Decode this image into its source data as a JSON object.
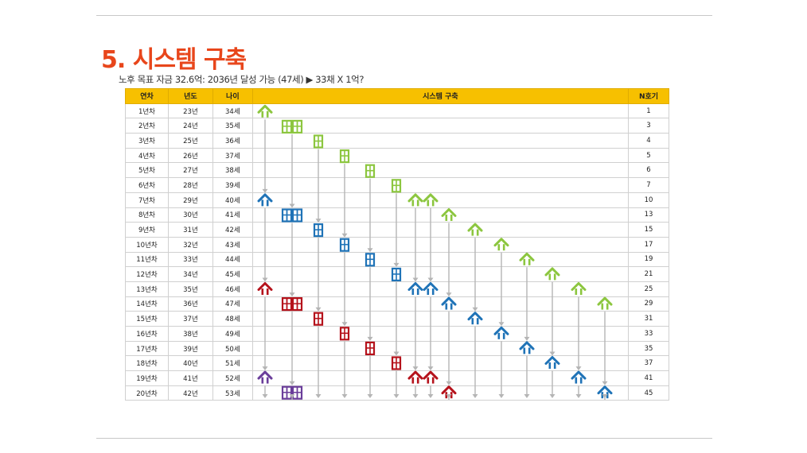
{
  "title": "5. 시스템 구축",
  "subtitle": "노후 목표 자금 32.6억: 2036년 달성 가능 (47세) ▶ 33채 X 1억?",
  "table": {
    "headers": [
      "연차",
      "년도",
      "나이",
      "시스템 구축",
      "N호기"
    ],
    "rows": [
      [
        "1년차",
        "23년",
        "34세",
        "1"
      ],
      [
        "2년차",
        "24년",
        "35세",
        "3"
      ],
      [
        "3년차",
        "25년",
        "36세",
        "4"
      ],
      [
        "4년차",
        "26년",
        "37세",
        "5"
      ],
      [
        "5년차",
        "27년",
        "38세",
        "6"
      ],
      [
        "6년차",
        "28년",
        "39세",
        "7"
      ],
      [
        "7년차",
        "29년",
        "40세",
        "10"
      ],
      [
        "8년차",
        "30년",
        "41세",
        "13"
      ],
      [
        "9년차",
        "31년",
        "42세",
        "15"
      ],
      [
        "10년차",
        "32년",
        "43세",
        "17"
      ],
      [
        "11년차",
        "33년",
        "44세",
        "19"
      ],
      [
        "12년차",
        "34년",
        "45세",
        "21"
      ],
      [
        "13년차",
        "35년",
        "46세",
        "25"
      ],
      [
        "14년차",
        "36년",
        "47세",
        "29"
      ],
      [
        "15년차",
        "37년",
        "48세",
        "31"
      ],
      [
        "16년차",
        "38년",
        "49세",
        "33"
      ],
      [
        "17년차",
        "39년",
        "50세",
        "35"
      ],
      [
        "18년차",
        "40년",
        "51세",
        "37"
      ],
      [
        "19년차",
        "41년",
        "52세",
        "41"
      ],
      [
        "20년차",
        "42년",
        "53세",
        "45"
      ]
    ]
  },
  "colors": {
    "header": "#f7c000",
    "title": "#e8461b",
    "arrow": "#b5b5b5",
    "stage": [
      "#8cc63f",
      "#1f73b7",
      "#b5121b",
      "#6a3d9a"
    ]
  },
  "timeline": [
    {
      "icon": "house",
      "start": 1
    },
    {
      "icon": "apartment",
      "start": 2
    },
    {
      "icon": "door",
      "start": 3
    },
    {
      "icon": "door",
      "start": 4
    },
    {
      "icon": "door",
      "start": 5
    },
    {
      "icon": "door",
      "start": 6
    },
    {
      "icon": "house",
      "start": 7
    },
    {
      "icon": "house",
      "start": 7
    },
    {
      "icon": "house",
      "start": 8
    },
    {
      "icon": "house",
      "start": 9
    },
    {
      "icon": "house",
      "start": 10
    },
    {
      "icon": "house",
      "start": 11
    },
    {
      "icon": "house",
      "start": 12
    },
    {
      "icon": "house",
      "start": 13
    },
    {
      "icon": "house",
      "start": 14
    }
  ]
}
